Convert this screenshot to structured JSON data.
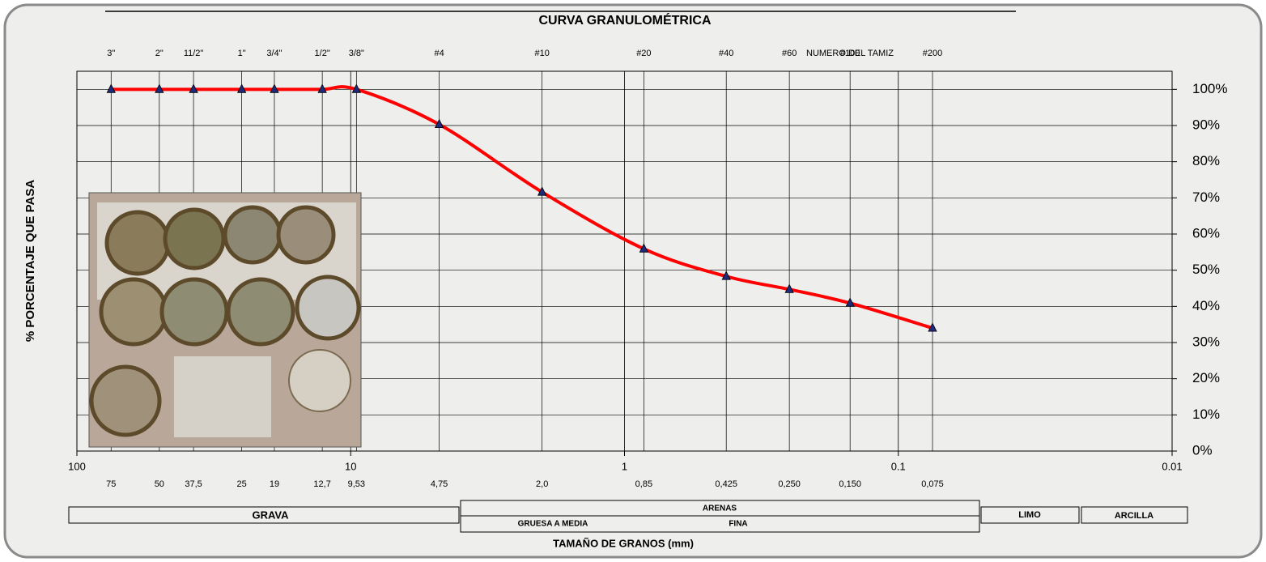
{
  "chart_data": {
    "type": "line",
    "title": "CURVA GRANULOMÉTRICA",
    "x_label": "TAMAÑO DE GRANOS (mm)",
    "y_label": "% PORCENTAJE QUE PASA",
    "x": [
      75,
      50,
      37.5,
      25,
      19,
      12.7,
      9.53,
      4.75,
      2.0,
      0.85,
      0.425,
      0.25,
      0.15,
      0.075
    ],
    "values": [
      100,
      100,
      100,
      100,
      100,
      100,
      100,
      90.3,
      71.6,
      55.9,
      48.3,
      44.7,
      40.9,
      34.0
    ],
    "color": "#ff0000",
    "marker_color": "#1f2a7a",
    "xscale": "log",
    "xlim": [
      100,
      0.01
    ],
    "xticks": [
      100,
      10,
      1,
      0.1,
      0.01
    ],
    "ylim": [
      0,
      105
    ],
    "yticks": [
      {
        "value": 0,
        "label": "0%"
      },
      {
        "value": 10,
        "label": "10%"
      },
      {
        "value": 20,
        "label": "20%"
      },
      {
        "value": 30,
        "label": "30%"
      },
      {
        "value": 40,
        "label": "40%"
      },
      {
        "value": 50,
        "label": "50%"
      },
      {
        "value": 60,
        "label": "60%"
      },
      {
        "value": 70,
        "label": "70%"
      },
      {
        "value": 80,
        "label": "80%"
      },
      {
        "value": 90,
        "label": "90%"
      },
      {
        "value": 100,
        "label": "100%"
      }
    ],
    "sieve_ticks": [
      {
        "value": 75,
        "label": "3\""
      },
      {
        "value": 50,
        "label": "2\""
      },
      {
        "value": 37.5,
        "label": "11/2\""
      },
      {
        "value": 25,
        "label": "1\""
      },
      {
        "value": 19,
        "label": "3/4\""
      },
      {
        "value": 12.7,
        "label": "1/2\""
      },
      {
        "value": 9.53,
        "label": "3/8\""
      },
      {
        "value": 4.75,
        "label": "#4"
      },
      {
        "value": 2.0,
        "label": "#10"
      },
      {
        "value": 0.85,
        "label": "#20"
      },
      {
        "value": 0.425,
        "label": "#40"
      },
      {
        "value": 0.25,
        "label": "#60"
      },
      {
        "value": 0.15,
        "label": "#100"
      },
      {
        "value": 0.075,
        "label": "#200"
      }
    ],
    "sieve_axis_label": "NUMERO DEL TAMIZ",
    "size_ticks": [
      75,
      50,
      {
        "value": 37.5,
        "label": "37,5"
      },
      25,
      19,
      {
        "value": 12.7,
        "label": "12,7"
      },
      {
        "value": 9.53,
        "label": "9,53"
      },
      {
        "value": 4.75,
        "label": "4,75"
      },
      {
        "value": 2.0,
        "label": "2,0"
      },
      {
        "value": 0.85,
        "label": "0,85"
      },
      {
        "value": 0.425,
        "label": "0,425"
      },
      {
        "value": 0.25,
        "label": "0,250"
      },
      {
        "value": 0.15,
        "label": "0,150"
      },
      {
        "value": 0.075,
        "label": "0,075"
      }
    ],
    "soil_classes": {
      "gravel": "GRAVA",
      "sand": "ARENAS",
      "coarse_medium": "GRUESA A MEDIA",
      "fine": "FINA",
      "silt": "LIMO",
      "clay": "ARCILLA"
    },
    "grid": true
  }
}
